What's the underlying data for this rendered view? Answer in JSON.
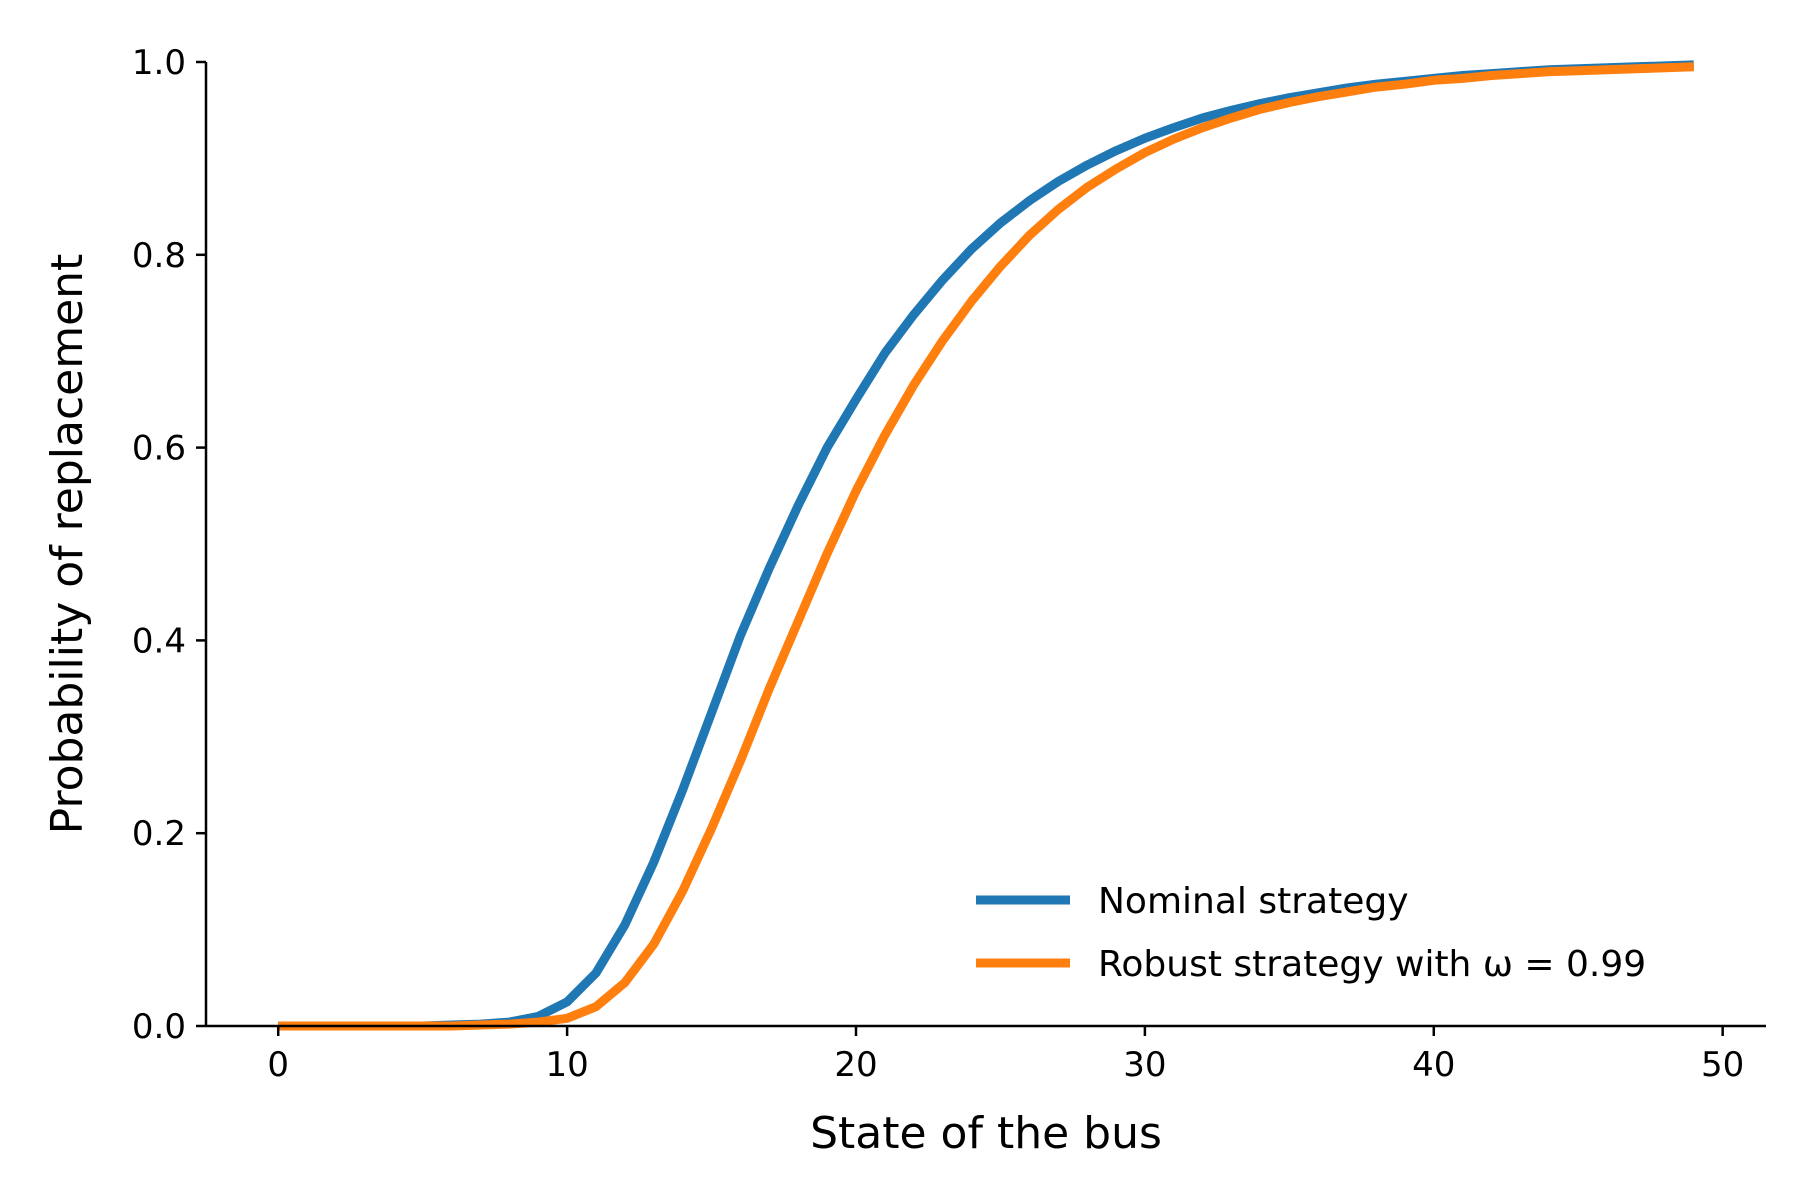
{
  "chart_data": {
    "type": "line",
    "title": "",
    "xlabel": "State of the bus",
    "ylabel": "Probability of replacement",
    "xlim": [
      -2.5,
      51.5
    ],
    "ylim": [
      0,
      1.0
    ],
    "xticks": [
      0,
      10,
      20,
      30,
      40,
      50
    ],
    "yticks": [
      0.0,
      0.2,
      0.4,
      0.6,
      0.8,
      1.0
    ],
    "xtick_labels": [
      "0",
      "10",
      "20",
      "30",
      "40",
      "50"
    ],
    "ytick_labels": [
      "0.0",
      "0.2",
      "0.4",
      "0.6",
      "0.8",
      "1.0"
    ],
    "grid": false,
    "legend_position": "lower-right",
    "series": [
      {
        "name": "Nominal strategy",
        "color": "#1f77b4",
        "x": [
          0,
          1,
          2,
          3,
          4,
          5,
          6,
          7,
          8,
          9,
          10,
          11,
          12,
          13,
          14,
          15,
          16,
          17,
          18,
          19,
          20,
          21,
          22,
          23,
          24,
          25,
          26,
          27,
          28,
          29,
          30,
          31,
          32,
          33,
          34,
          35,
          36,
          37,
          38,
          39,
          40,
          41,
          42,
          43,
          44,
          45,
          46,
          47,
          48,
          49
        ],
        "y": [
          0,
          0,
          0,
          0,
          0,
          0,
          0.001,
          0.002,
          0.004,
          0.01,
          0.025,
          0.055,
          0.105,
          0.17,
          0.245,
          0.325,
          0.405,
          0.475,
          0.54,
          0.6,
          0.65,
          0.698,
          0.738,
          0.774,
          0.806,
          0.833,
          0.856,
          0.876,
          0.893,
          0.908,
          0.921,
          0.932,
          0.942,
          0.95,
          0.957,
          0.963,
          0.968,
          0.973,
          0.977,
          0.98,
          0.983,
          0.986,
          0.988,
          0.99,
          0.992,
          0.993,
          0.994,
          0.995,
          0.996,
          0.997
        ]
      },
      {
        "name": "Robust strategy with ω = 0.99",
        "color": "#ff7f0e",
        "x": [
          0,
          1,
          2,
          3,
          4,
          5,
          6,
          7,
          8,
          9,
          10,
          11,
          12,
          13,
          14,
          15,
          16,
          17,
          18,
          19,
          20,
          21,
          22,
          23,
          24,
          25,
          26,
          27,
          28,
          29,
          30,
          31,
          32,
          33,
          34,
          35,
          36,
          37,
          38,
          39,
          40,
          41,
          42,
          43,
          44,
          45,
          46,
          47,
          48,
          49
        ],
        "y": [
          0,
          0,
          0,
          0,
          0,
          0,
          0,
          0.001,
          0.002,
          0.004,
          0.008,
          0.02,
          0.045,
          0.085,
          0.14,
          0.205,
          0.275,
          0.35,
          0.42,
          0.49,
          0.555,
          0.613,
          0.665,
          0.711,
          0.752,
          0.788,
          0.82,
          0.847,
          0.87,
          0.889,
          0.906,
          0.92,
          0.932,
          0.942,
          0.951,
          0.958,
          0.964,
          0.969,
          0.974,
          0.977,
          0.981,
          0.983,
          0.986,
          0.988,
          0.99,
          0.991,
          0.992,
          0.993,
          0.994,
          0.995
        ]
      }
    ]
  }
}
